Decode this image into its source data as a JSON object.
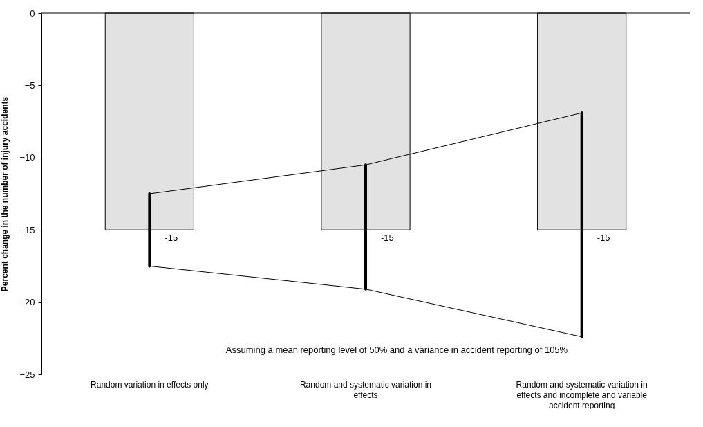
{
  "chart_data": {
    "type": "bar",
    "ylabel": "Percent change in the number of injury accidents",
    "categories": [
      "Random variation in effects only",
      "Random and systematic variation in effects",
      "Random and systematic variation in effects and incomplete and variable accident reporting"
    ],
    "values": [
      -15,
      -15,
      -15
    ],
    "color": "#e2e2e2",
    "errors": [
      [
        -17.5,
        -12.5
      ],
      [
        -19.1,
        -10.5
      ],
      [
        -22.4,
        -6.9
      ]
    ],
    "value_labels": [
      "-15",
      "-15",
      "-15"
    ],
    "series": [
      {
        "type": "line",
        "color": "#000000",
        "values": [
          -12.5,
          -10.5,
          -6.9
        ]
      },
      {
        "type": "line",
        "color": "#000000",
        "values": [
          -17.5,
          -19.1,
          -22.4
        ]
      }
    ],
    "ylim": [
      -25,
      0
    ],
    "yticks": [
      0,
      -5,
      -10,
      -15,
      -20,
      -25
    ],
    "grid": false,
    "legend": false,
    "annotations": [
      "Assuming a mean reporting level of 50% and a variance in accident reporting of 105%"
    ]
  }
}
